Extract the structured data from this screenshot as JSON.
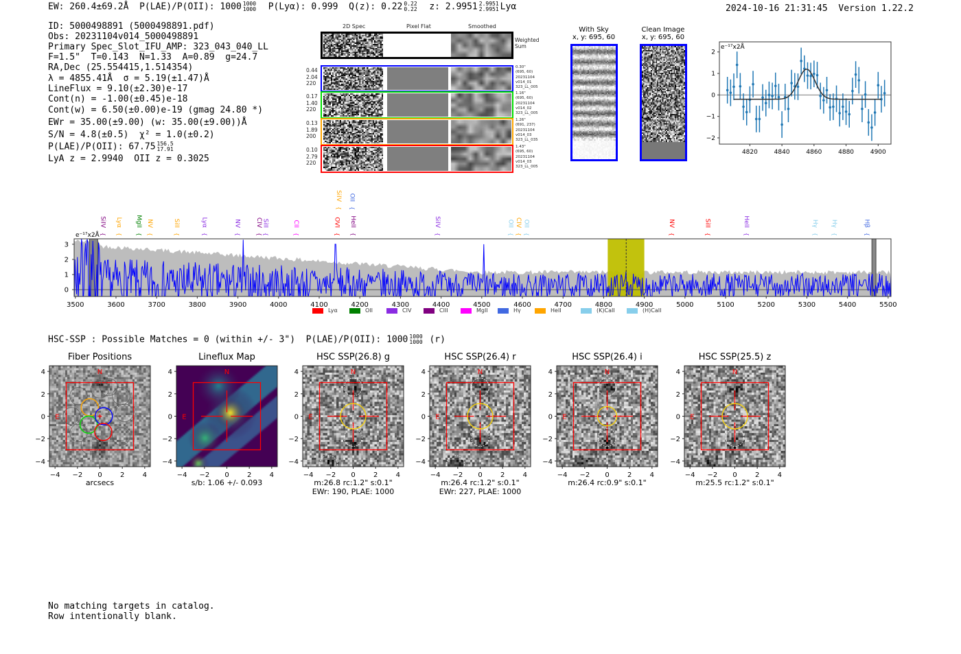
{
  "header": {
    "ew": "EW: 260.4±69.2Å",
    "plae_label": "P(LAE)/P(OII): 1000",
    "plae_hi": "1000",
    "plae_lo": "1000",
    "plya": "P(Lyα): 0.999",
    "qz": "Q(z): 0.22",
    "qz_hi": "0.22",
    "qz_lo": "0.22",
    "z": "z: 2.9951",
    "z_hi": "2.9951",
    "z_lo": "2.9951",
    "z_line": "Lyα",
    "timestamp": "2024-10-16 21:31:45",
    "version": "Version 1.22.2"
  },
  "info": {
    "id": "ID: 5000498891 (5000498891.pdf)",
    "obs": "Obs: 20231104v014_5000498891",
    "primary": "Primary Spec_Slot_IFU_AMP: 323_043_040_LL",
    "params": "F=1.5\"  T=0.143  N=1.33  A=0.89  g=24.7",
    "radec": "RA,Dec (25.554415,1.514354)",
    "lambda": "λ = 4855.41Å  σ = 5.19(±1.47)Å",
    "lineflux": "LineFlux = 9.10(±2.30)e-17",
    "contn": "Cont(n) = -1.00(±0.45)e-18",
    "contw": "Cont(w) = 6.50(±0.00)e-19 (gmag 24.80 *)",
    "ewr": "EWr = 35.00(±9.00) (w: 35.00(±9.00))Å",
    "sn": "S/N = 4.8(±0.5)  χ² = 1.0(±0.2)",
    "plae": "P(LAE)/P(OII): 67.75",
    "plae_hi": "156.5",
    "plae_lo": "17.91",
    "zs": "LyA z = 2.9940  OII z = 0.3025"
  },
  "spec2d": {
    "col_titles": [
      "2D Spec",
      "Pixel Flat",
      "Smoothed"
    ],
    "weighted_sum": "Weighted\nSum",
    "rows": [
      {
        "left": "0.44\n2.04\n220",
        "right": "0.30\"\n(695, 60)\n20231104\nv014_01\n323_LL_005",
        "color": "#0000ff"
      },
      {
        "left": "0.17\n1.40\n220",
        "right": "1.16\"\n(695, 60)\n20231104\nv014_02\n323_LL_005",
        "color": "#00dd00"
      },
      {
        "left": "0.13\n1.89\n200",
        "right": "1.26\"\n(691, 237)\n20231104\nv014_03\n323_LL_035",
        "color": "#ffa500"
      },
      {
        "left": "0.10\n2.79\n220",
        "right": "1.43\"\n(695, 60)\n20231104\nv014_03\n323_LL_005",
        "color": "#ff0000"
      }
    ]
  },
  "sky": {
    "with_sky": "With Sky",
    "with_sky_xy": "x, y: 695, 60",
    "clean": "Clean Image",
    "clean_xy": "x, y: 695, 60"
  },
  "chart_data": [
    {
      "type": "scatter",
      "name": "line-fit",
      "unit_label": "e⁻¹⁷x2Å",
      "xlim": [
        4801,
        4908
      ],
      "ylim": [
        -2.29,
        2.47
      ],
      "xticks": [
        "4820",
        "4840",
        "4860",
        "4880",
        "4900"
      ],
      "yticks": [
        "-2",
        "-1",
        "0",
        "1",
        "2"
      ],
      "x": [
        4806,
        4808,
        4810,
        4812,
        4814,
        4816,
        4818,
        4820,
        4822,
        4824,
        4826,
        4828,
        4830,
        4832,
        4834,
        4836,
        4838,
        4840,
        4842,
        4844,
        4846,
        4848,
        4850,
        4852,
        4854,
        4856,
        4858,
        4860,
        4862,
        4864,
        4866,
        4868,
        4870,
        4872,
        4874,
        4876,
        4878,
        4880,
        4882,
        4884,
        4886,
        4888,
        4890,
        4892,
        4894,
        4896,
        4898,
        4900,
        4902,
        4904
      ],
      "y": [
        0.22,
        0.1,
        0.38,
        1.4,
        0.4,
        -0.55,
        -0.8,
        -0.22,
        0.5,
        -1.12,
        -1.12,
        -0.12,
        -0.38,
        0.0,
        -0.05,
        0.42,
        -0.1,
        -1.38,
        -0.1,
        -0.65,
        0.55,
        0.4,
        0.38,
        1.58,
        1.22,
        0.9,
        0.88,
        0.98,
        0.92,
        -0.05,
        -0.25,
        0.22,
        -0.58,
        -0.55,
        -0.18,
        -0.85,
        -0.55,
        -0.78,
        -0.9,
        0.18,
        0.95,
        0.68,
        -0.65,
        0.02,
        -1.28,
        -1.52,
        -0.82,
        0.45,
        -0.2,
        0.08
      ],
      "yerr": 0.62,
      "fit": {
        "center": 4855.41,
        "sigma": 5.19,
        "amplitude": 1.4,
        "baseline": -0.2,
        "range": [
          4810,
          4902
        ]
      }
    },
    {
      "type": "line",
      "name": "full-spectrum",
      "unit_label": "e⁻¹⁷x2Å",
      "xlim": [
        3497,
        5507
      ],
      "ylim": [
        -0.45,
        3.36
      ],
      "xticks": [
        "3500",
        "3600",
        "3700",
        "3800",
        "3900",
        "4000",
        "4100",
        "4200",
        "4300",
        "4400",
        "4500",
        "4600",
        "4700",
        "4800",
        "4900",
        "5000",
        "5100",
        "5200",
        "5300",
        "5400",
        "5500"
      ],
      "yticks": [
        "0",
        "1",
        "2",
        "3"
      ],
      "highlight_range": [
        4810,
        4900
      ],
      "line_center": 4855.41,
      "masked_ranges": [
        [
          3535,
          3555
        ],
        [
          5460,
          5470
        ]
      ],
      "notable_peaks": [
        {
          "x": 3913,
          "y": 3.3
        },
        {
          "x": 4140,
          "y": 3.0
        },
        {
          "x": 4505,
          "y": 3.0
        },
        {
          "x": 4855,
          "y": 1.2
        }
      ],
      "line_labels": [
        {
          "name": "SiIV",
          "x": 3559,
          "color": "#800080",
          "tier": 0
        },
        {
          "name": "Lyα",
          "x": 3598,
          "color": "#ffa500",
          "tier": 0
        },
        {
          "name": "MgII",
          "x": 3647,
          "color": "#008000",
          "tier": 0
        },
        {
          "name": "NV",
          "x": 3674,
          "color": "#ffa500",
          "tier": 0
        },
        {
          "name": "SiII",
          "x": 3740,
          "color": "#ffa500",
          "tier": 0
        },
        {
          "name": "Lyα",
          "x": 3809,
          "color": "#8a2be2",
          "tier": 0
        },
        {
          "name": "NV",
          "x": 3890,
          "color": "#8a2be2",
          "tier": 0
        },
        {
          "name": "CIV",
          "x": 3943,
          "color": "#800080",
          "tier": 0
        },
        {
          "name": "SiII",
          "x": 3959,
          "color": "#8a2be2",
          "tier": 0
        },
        {
          "name": "CII",
          "x": 4034,
          "color": "#ff00ff",
          "tier": 0
        },
        {
          "name": "SiIV",
          "x": 4139,
          "color": "#ffa500",
          "tier": 1
        },
        {
          "name": "OII",
          "x": 4172,
          "color": "#4169e1",
          "tier": 1
        },
        {
          "name": "OVI",
          "x": 4135,
          "color": "#ff0000",
          "tier": 0
        },
        {
          "name": "HeII",
          "x": 4174,
          "color": "#800080",
          "tier": 0
        },
        {
          "name": "SiIV",
          "x": 4382,
          "color": "#8a2be2",
          "tier": 0
        },
        {
          "name": "OII",
          "x": 4562,
          "color": "#87ceeb",
          "tier": 0
        },
        {
          "name": "CIV",
          "x": 4581,
          "color": "#ffa500",
          "tier": 0
        },
        {
          "name": "OII",
          "x": 4601,
          "color": "#87ceeb",
          "tier": 0
        },
        {
          "name": "NV",
          "x": 4958,
          "color": "#ff0000",
          "tier": 0
        },
        {
          "name": "SiII",
          "x": 5047,
          "color": "#ff0000",
          "tier": 0
        },
        {
          "name": "HeII",
          "x": 5142,
          "color": "#8a2be2",
          "tier": 0
        },
        {
          "name": "Hγ",
          "x": 5311,
          "color": "#87ceeb",
          "tier": 0
        },
        {
          "name": "Hγ",
          "x": 5358,
          "color": "#87ceeb",
          "tier": 0
        },
        {
          "name": "Hβ",
          "x": 5439,
          "color": "#4169e1",
          "tier": 0
        }
      ],
      "legend": [
        {
          "label": "Lyα",
          "color": "#ff0000"
        },
        {
          "label": "OII",
          "color": "#008000"
        },
        {
          "label": "CIV",
          "color": "#8a2be2"
        },
        {
          "label": "CIII",
          "color": "#800080"
        },
        {
          "label": "MgII",
          "color": "#ff00ff"
        },
        {
          "label": "Hγ",
          "color": "#4169e1"
        },
        {
          "label": "HeII",
          "color": "#ffa500"
        },
        {
          "label": "(K)CaII",
          "color": "#87ceeb"
        },
        {
          "label": "(H)CaII",
          "color": "#87ceeb"
        }
      ]
    }
  ],
  "hsc": {
    "summary": "HSC-SSP : Possible Matches = 0 (within +/- 3\")  P(LAE)/P(OII): 1000",
    "summary_hi": "1000",
    "summary_lo": "1000",
    "summary_tail": "(r)",
    "axis_ticks": [
      "-4",
      "-2",
      "0",
      "2",
      "4"
    ],
    "north": "N",
    "east": "E",
    "panels": [
      {
        "title": "Fiber Positions",
        "cap1": "arcsecs",
        "cap2": ""
      },
      {
        "title": "Lineflux Map",
        "cap1": "s/b: 1.06 +/- 0.093",
        "cap2": ""
      },
      {
        "title": "HSC SSP(26.8) g",
        "cap1": "m:26.8 rc:1.2\"  s:0.1\"",
        "cap2": "EWr: 190, PLAE: 1000"
      },
      {
        "title": "HSC SSP(26.4) r",
        "cap1": "m:26.4 rc:1.2\"  s:0.1\"",
        "cap2": "EWr: 227, PLAE: 1000"
      },
      {
        "title": "HSC SSP(26.4) i",
        "cap1": "m:26.4 rc:0.9\"  s:0.1\"",
        "cap2": ""
      },
      {
        "title": "HSC SSP(25.5) z",
        "cap1": "m:25.5 rc:1.2\"  s:0.1\"",
        "cap2": ""
      }
    ]
  },
  "footer": {
    "line1": "No matching targets in catalog.",
    "line2": "Row intentionally blank."
  }
}
